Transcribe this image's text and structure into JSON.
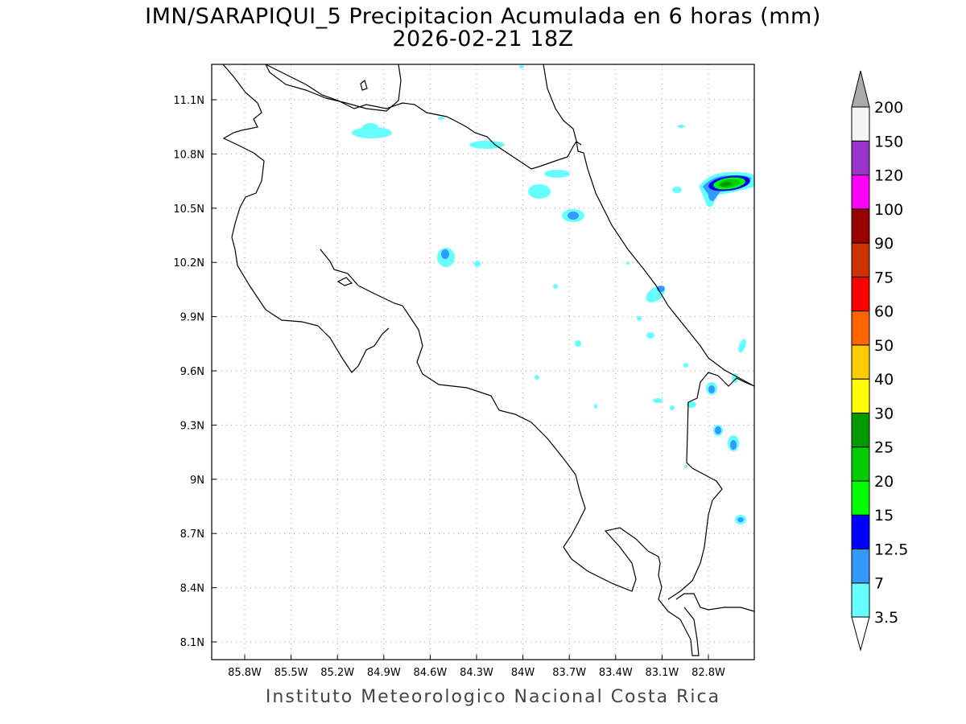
{
  "title": {
    "line1": "IMN/SARAPIQUI_5 Precipitacion Acumulada en 6 horas (mm)",
    "line2": "2026-02-21 18Z"
  },
  "footer": "Instituto Meteorologico Nacional Costa Rica",
  "map": {
    "lon_ticks": [
      "85.8W",
      "85.5W",
      "85.2W",
      "84.9W",
      "84.6W",
      "84.3W",
      "84W",
      "83.7W",
      "83.4W",
      "83.1W",
      "82.8W"
    ],
    "lat_ticks": [
      "11.1N",
      "10.8N",
      "10.5N",
      "10.2N",
      "9.9N",
      "9.6N",
      "9.3N",
      "9N",
      "8.7N",
      "8.4N",
      "8.1N"
    ],
    "lon_range": [
      -86.0,
      -82.5
    ],
    "lat_range": [
      8.0,
      11.3
    ]
  },
  "colorbar": {
    "levels": [
      "3.5",
      "7",
      "12.5",
      "15",
      "20",
      "25",
      "30",
      "40",
      "50",
      "60",
      "75",
      "90",
      "100",
      "120",
      "150",
      "200"
    ],
    "colors": [
      "#66ffff",
      "#3399ff",
      "#0000ff",
      "#00ff00",
      "#00cc00",
      "#009900",
      "#ffff00",
      "#ffcc00",
      "#ff6600",
      "#ff0000",
      "#cc3300",
      "#990000",
      "#ff00ff",
      "#9933cc",
      "#f5f5f5"
    ],
    "over_color": "#aaaaaa",
    "under_color": "#ffffff"
  }
}
